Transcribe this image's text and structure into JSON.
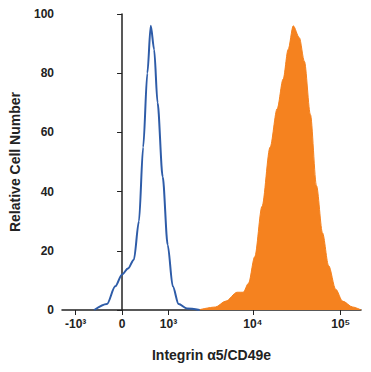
{
  "chart_data": {
    "type": "histogram",
    "x_label": "Integrin α5/CD49e",
    "y_label": "Relative Cell Number",
    "xlim": [
      -1500,
      170000
    ],
    "xticks": [
      {
        "value": -1000,
        "label": "-10³"
      },
      0,
      {
        "value": 1000,
        "label": "10³"
      },
      {
        "value": 10000,
        "label": "10⁴"
      },
      {
        "value": 100000,
        "label": "10⁵"
      }
    ],
    "ylim": [
      0,
      100
    ],
    "yticks": [
      0,
      20,
      40,
      60,
      80,
      100
    ],
    "grid": false,
    "series": [
      {
        "type": "area",
        "color": "#f5821f",
        "x": [
          2340,
          3720,
          4900,
          6600,
          7760,
          8900,
          10500,
          12700,
          15700,
          18900,
          22100,
          25200,
          28800,
          33800,
          38600,
          45200,
          53000,
          62100,
          72800,
          87700,
          105000,
          137000,
          170000
        ],
        "values": [
          0,
          1,
          3,
          6,
          6,
          9,
          18,
          35,
          55,
          68,
          78,
          88,
          96,
          92,
          84,
          66,
          42,
          26,
          15,
          7,
          3,
          1,
          0
        ]
      },
      {
        "type": "line",
        "color": "#2e5ca8",
        "x": [
          -517,
          -265,
          -116,
          0,
          101,
          204,
          297,
          378,
          463,
          536,
          613,
          696,
          830,
          976,
          1141,
          1356,
          1721,
          2441
        ],
        "values": [
          0,
          2,
          8,
          12,
          14,
          17,
          30,
          55,
          80,
          96,
          88,
          70,
          45,
          22,
          8,
          2,
          0.5,
          0
        ]
      }
    ]
  }
}
